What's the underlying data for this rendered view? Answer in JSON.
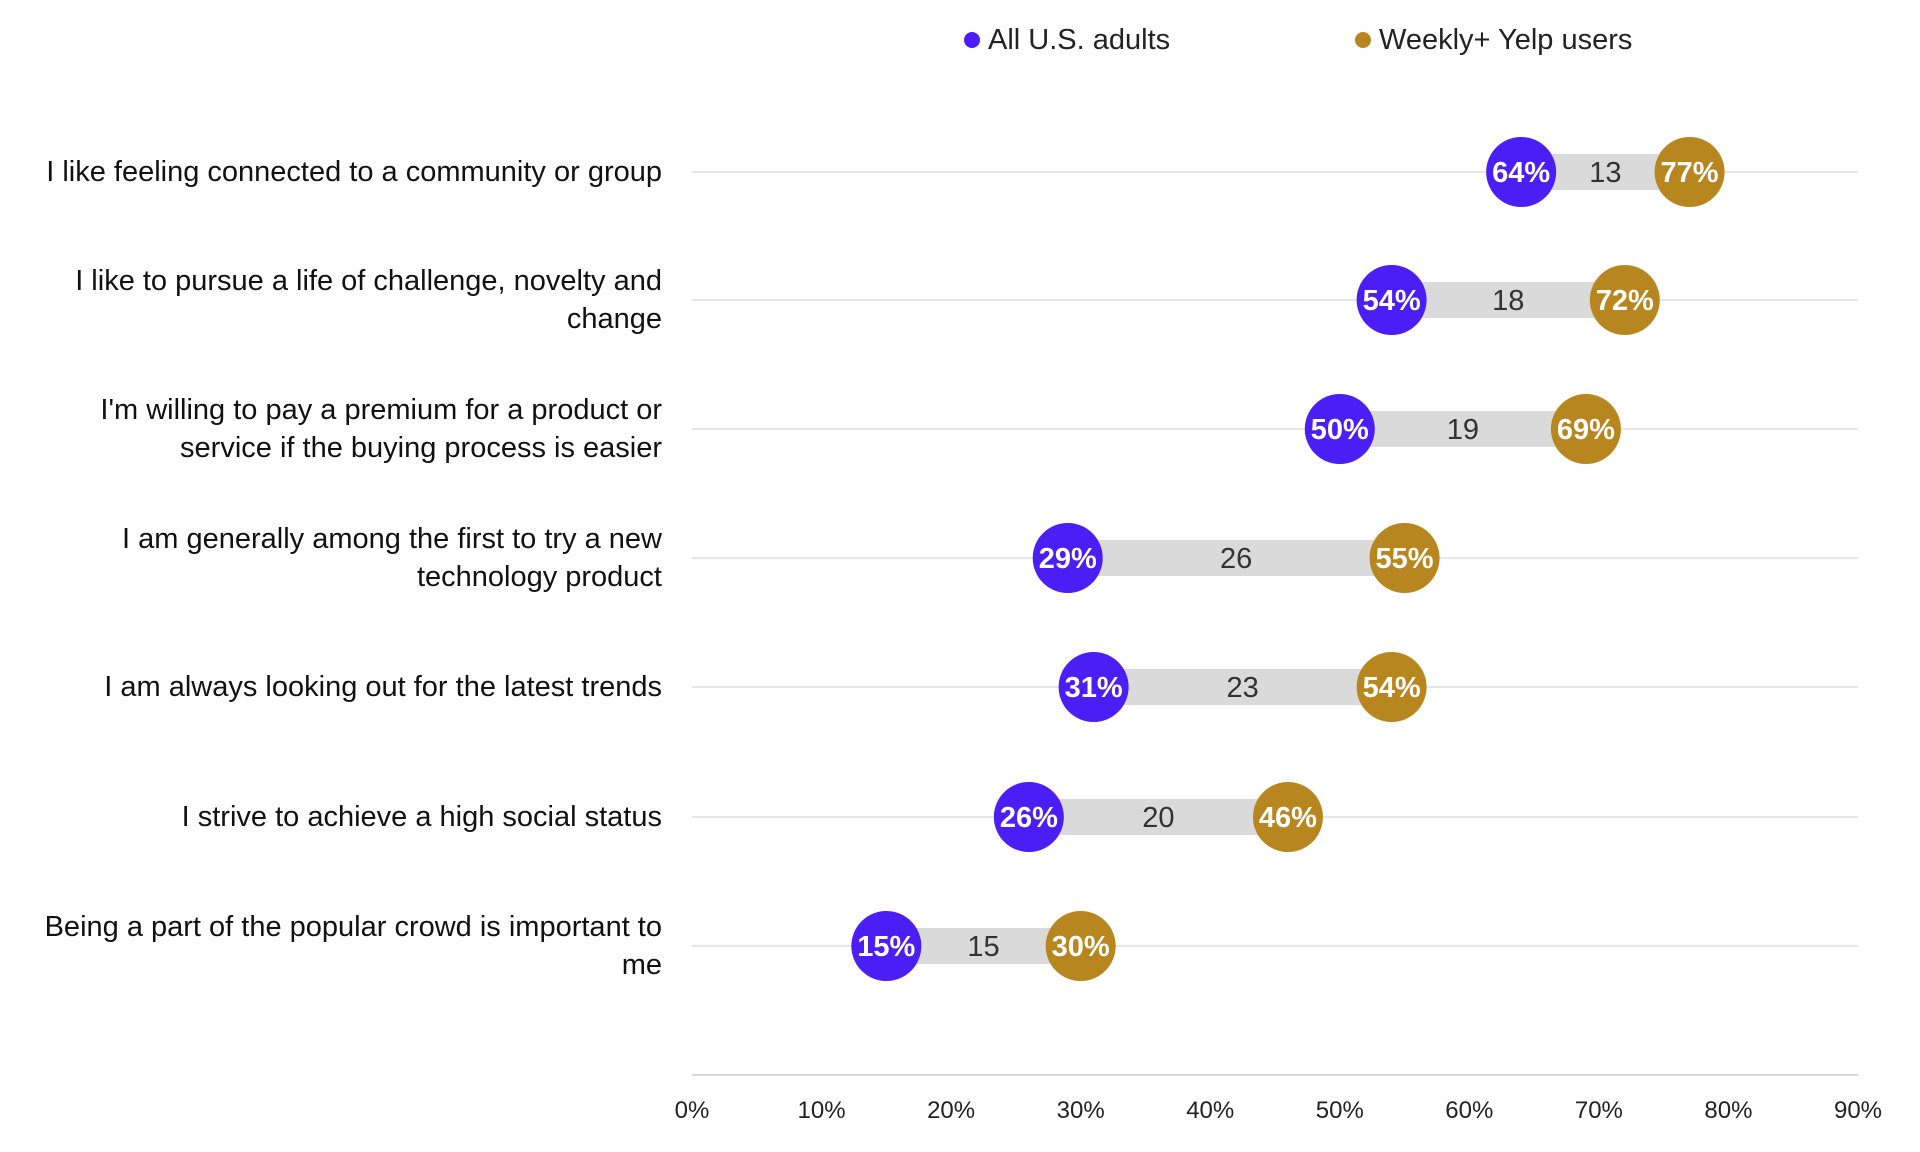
{
  "colors": {
    "series_a": "#4B1EF5",
    "series_b": "#B8861E",
    "bar": "#DADADA",
    "grid": "#DDDDDD",
    "axis": "#CCCCCC"
  },
  "legend": {
    "series_a": "All U.S. adults",
    "series_b": "Weekly+ Yelp users"
  },
  "chart_data": {
    "type": "dumbbell",
    "xlim": [
      0,
      90
    ],
    "x_ticks": [
      "0%",
      "10%",
      "20%",
      "30%",
      "40%",
      "50%",
      "60%",
      "70%",
      "80%",
      "90%"
    ],
    "legend_position": "top",
    "grid": true,
    "categories": [
      "I like feeling connected to a community or group",
      "I like to pursue a life of challenge, novelty and change",
      "I'm willing to pay a premium for a product or service if the buying process is easier",
      "I am generally among the first to try a new technology product",
      "I am always looking out for the latest trends",
      "I strive to achieve a high social status",
      "Being a part of the popular crowd is important to me"
    ],
    "series": [
      {
        "name": "All U.S. adults",
        "values": [
          64,
          54,
          50,
          29,
          31,
          26,
          15
        ],
        "labels": [
          "64%",
          "54%",
          "50%",
          "29%",
          "31%",
          "26%",
          "15%"
        ]
      },
      {
        "name": "Weekly+ Yelp users",
        "values": [
          77,
          72,
          69,
          55,
          54,
          46,
          30
        ],
        "labels": [
          "77%",
          "72%",
          "69%",
          "55%",
          "54%",
          "46%",
          "30%"
        ]
      }
    ],
    "differences": [
      "13",
      "18",
      "19",
      "26",
      "23",
      "20",
      "15"
    ]
  }
}
